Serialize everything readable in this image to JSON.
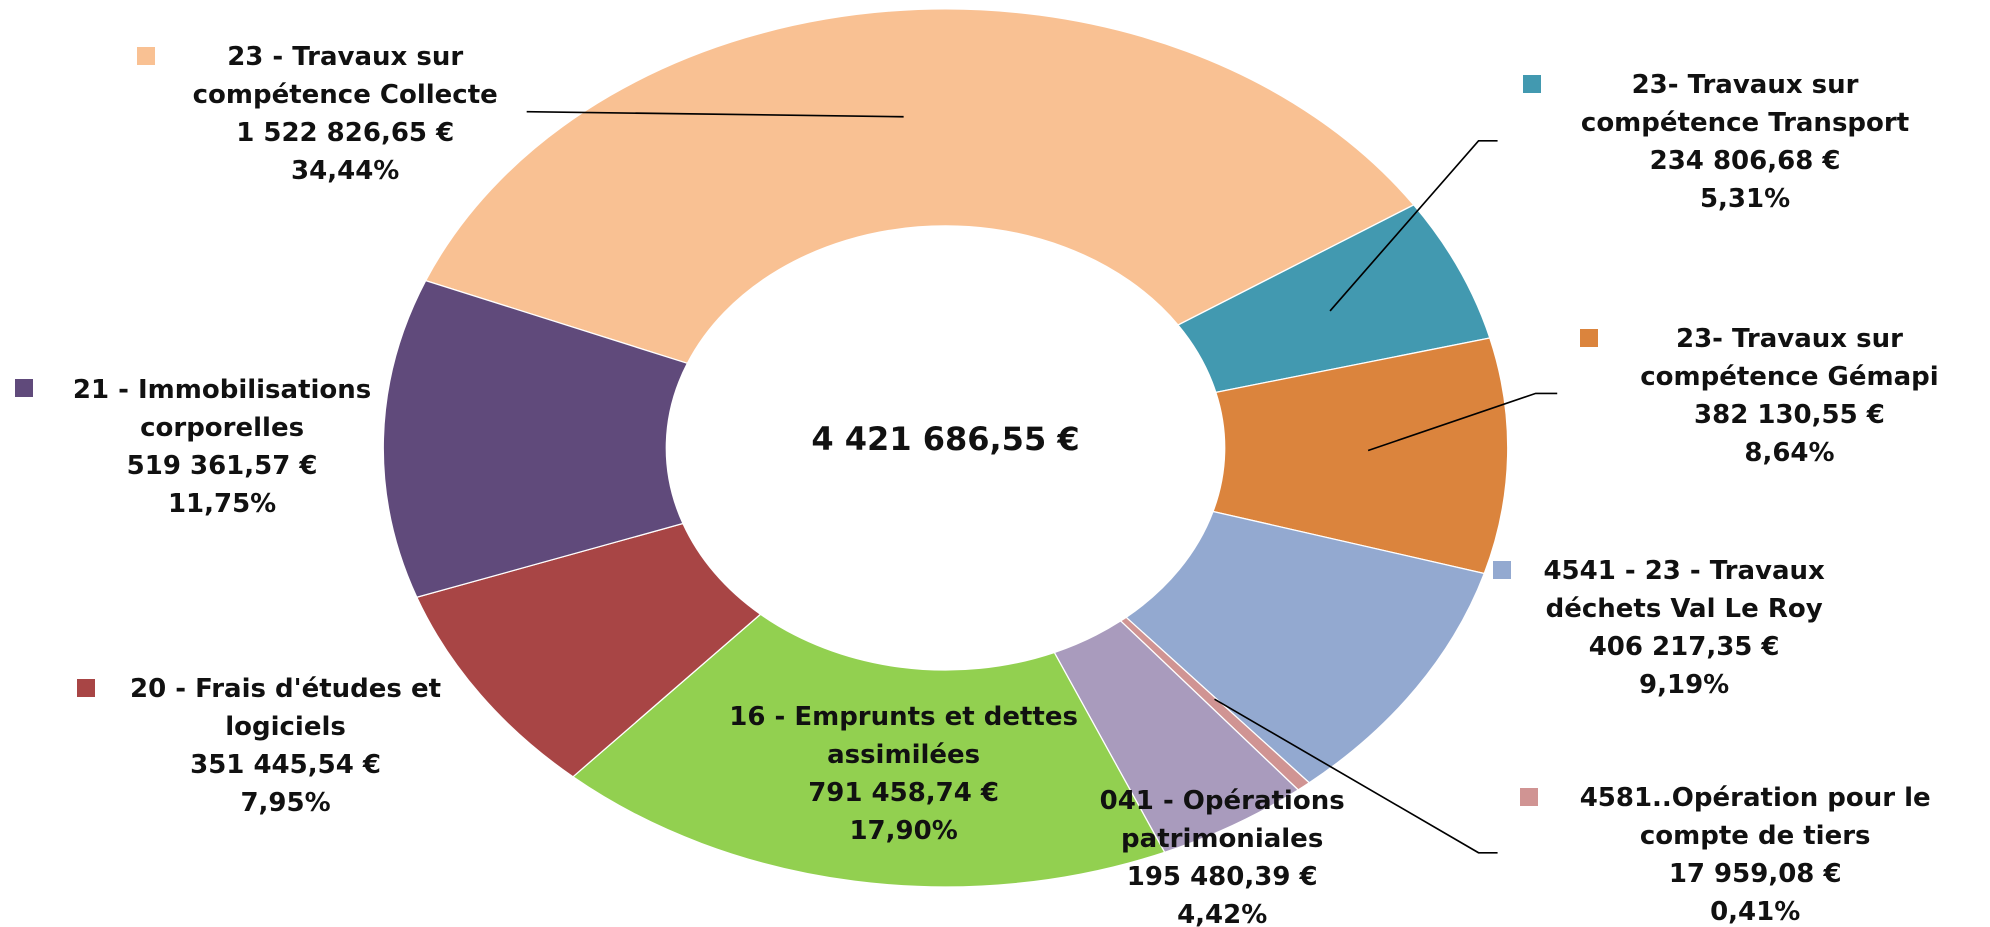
{
  "chart_data": {
    "type": "donut",
    "center_label": "4 421 686,55 €",
    "categories": [
      "23 - Travaux sur compétence Collecte",
      "23- Travaux sur compétence Transport",
      "23- Travaux sur compétence Gémapi",
      "4541 - 23 - Travaux déchets Val Le Roy",
      "4581..Opération pour le compte de tiers",
      "041 - Opérations patrimoniales",
      "16 - Emprunts et dettes assimilées",
      "20 - Frais d'études et logiciels",
      "21 - Immobilisations corporelles"
    ],
    "values": [
      1522826.65,
      234806.68,
      382130.55,
      406217.35,
      17959.08,
      195480.39,
      791458.74,
      351445.54,
      519361.57
    ],
    "value_labels": [
      "1 522 826,65 €",
      "234 806,68 €",
      "382 130,55 €",
      "406 217,35 €",
      "17 959,08 €",
      "195 480,39 €",
      "791 458,74 €",
      "351 445,54 €",
      "519 361,57 €"
    ],
    "percent_labels": [
      "34,44%",
      "5,31%",
      "8,64%",
      "9,19%",
      "0,41%",
      "4,42%",
      "17,90%",
      "7,95%",
      "11,75%"
    ],
    "colors": [
      "#f9c193",
      "#4299b0",
      "#db843d",
      "#93a9d0",
      "#d09493",
      "#a99bbd",
      "#92d050",
      "#a84545",
      "#604a7b"
    ]
  }
}
